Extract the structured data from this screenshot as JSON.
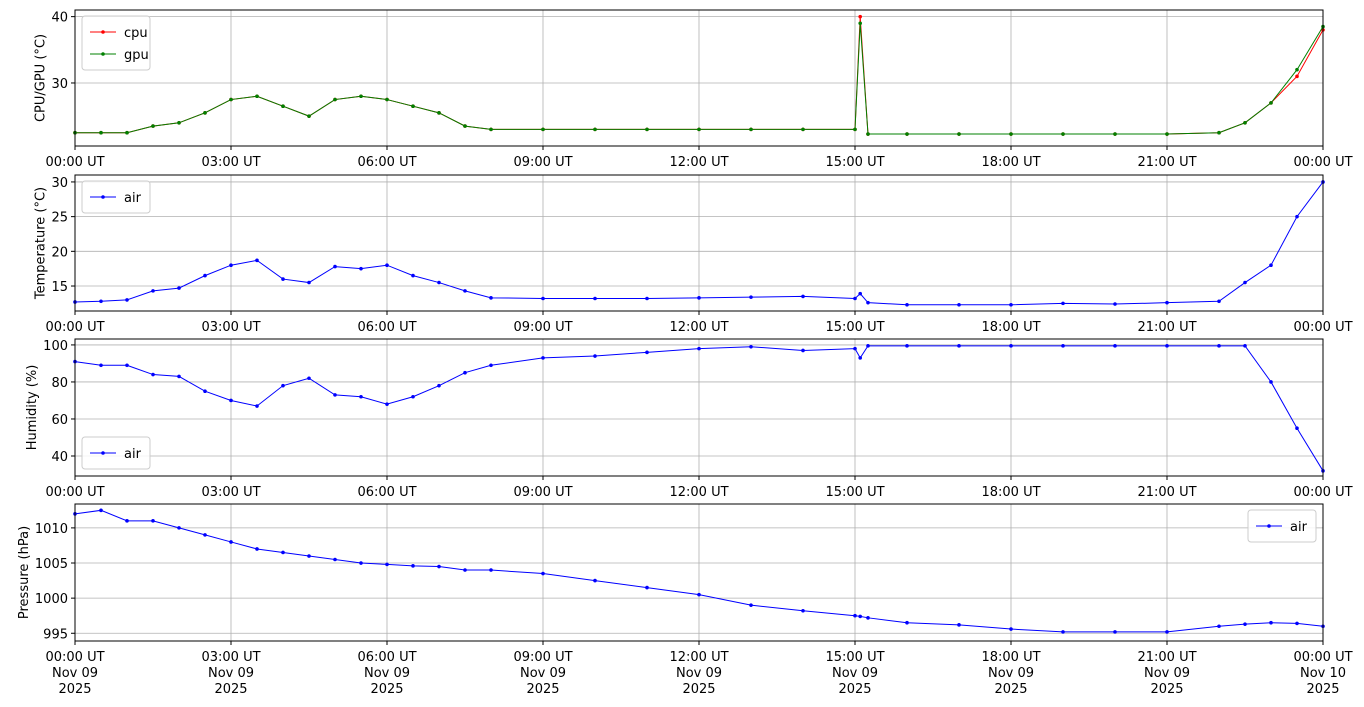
{
  "chart_data": [
    {
      "type": "line",
      "ylabel": "CPU/GPU (°C)",
      "grid": true,
      "legend": "upper left",
      "x": [
        "2025-11-09 00:00",
        "2025-11-09 00:30",
        "2025-11-09 01:00",
        "2025-11-09 01:30",
        "2025-11-09 02:00",
        "2025-11-09 02:30",
        "2025-11-09 03:00",
        "2025-11-09 03:30",
        "2025-11-09 04:00",
        "2025-11-09 04:30",
        "2025-11-09 05:00",
        "2025-11-09 05:30",
        "2025-11-09 06:00",
        "2025-11-09 06:30",
        "2025-11-09 07:00",
        "2025-11-09 07:30",
        "2025-11-09 08:00",
        "2025-11-09 09:00",
        "2025-11-09 10:00",
        "2025-11-09 11:00",
        "2025-11-09 12:00",
        "2025-11-09 13:00",
        "2025-11-09 14:00",
        "2025-11-09 15:00",
        "2025-11-09 15:06",
        "2025-11-09 15:15",
        "2025-11-09 16:00",
        "2025-11-09 17:00",
        "2025-11-09 18:00",
        "2025-11-09 19:00",
        "2025-11-09 20:00",
        "2025-11-09 21:00",
        "2025-11-09 22:00",
        "2025-11-09 22:30",
        "2025-11-09 23:00",
        "2025-11-09 23:30",
        "2025-11-10 00:00"
      ],
      "series": [
        {
          "name": "cpu",
          "color": "#ff0000",
          "values": [
            22.5,
            22.5,
            22.5,
            23.5,
            24,
            25.5,
            27.5,
            28,
            26.5,
            25,
            27.5,
            28,
            27.5,
            26.5,
            25.5,
            23.5,
            23,
            23,
            23,
            23,
            23,
            23,
            23,
            23,
            40,
            22.3,
            22.3,
            22.3,
            22.3,
            22.3,
            22.3,
            22.3,
            22.5,
            24,
            27,
            31,
            38
          ]
        },
        {
          "name": "gpu",
          "color": "#008000",
          "values": [
            22.5,
            22.5,
            22.5,
            23.5,
            24,
            25.5,
            27.5,
            28,
            26.5,
            25,
            27.5,
            28,
            27.5,
            26.5,
            25.5,
            23.5,
            23,
            23,
            23,
            23,
            23,
            23,
            23,
            23,
            39,
            22.3,
            22.3,
            22.3,
            22.3,
            22.3,
            22.3,
            22.3,
            22.5,
            24,
            27,
            32,
            38.5
          ]
        }
      ],
      "xlim": [
        "2025-11-09 00:00",
        "2025-11-10 00:00"
      ],
      "ylim": [
        20.5,
        41
      ],
      "xticks": [
        {
          "value": "2025-11-09 00:00",
          "label": "00:00 UT"
        },
        {
          "value": "2025-11-09 03:00",
          "label": "03:00 UT"
        },
        {
          "value": "2025-11-09 06:00",
          "label": "06:00 UT"
        },
        {
          "value": "2025-11-09 09:00",
          "label": "09:00 UT"
        },
        {
          "value": "2025-11-09 12:00",
          "label": "12:00 UT"
        },
        {
          "value": "2025-11-09 15:00",
          "label": "15:00 UT"
        },
        {
          "value": "2025-11-09 18:00",
          "label": "18:00 UT"
        },
        {
          "value": "2025-11-09 21:00",
          "label": "21:00 UT"
        },
        {
          "value": "2025-11-10 00:00",
          "label": "00:00 UT"
        }
      ],
      "yticks": [
        30,
        40
      ]
    },
    {
      "type": "line",
      "ylabel": "Temperature (°C)",
      "grid": true,
      "legend": "upper left",
      "x": [
        "2025-11-09 00:00",
        "2025-11-09 00:30",
        "2025-11-09 01:00",
        "2025-11-09 01:30",
        "2025-11-09 02:00",
        "2025-11-09 02:30",
        "2025-11-09 03:00",
        "2025-11-09 03:30",
        "2025-11-09 04:00",
        "2025-11-09 04:30",
        "2025-11-09 05:00",
        "2025-11-09 05:30",
        "2025-11-09 06:00",
        "2025-11-09 06:30",
        "2025-11-09 07:00",
        "2025-11-09 07:30",
        "2025-11-09 08:00",
        "2025-11-09 09:00",
        "2025-11-09 10:00",
        "2025-11-09 11:00",
        "2025-11-09 12:00",
        "2025-11-09 13:00",
        "2025-11-09 14:00",
        "2025-11-09 15:00",
        "2025-11-09 15:06",
        "2025-11-09 15:15",
        "2025-11-09 16:00",
        "2025-11-09 17:00",
        "2025-11-09 18:00",
        "2025-11-09 19:00",
        "2025-11-09 20:00",
        "2025-11-09 21:00",
        "2025-11-09 22:00",
        "2025-11-09 22:30",
        "2025-11-09 23:00",
        "2025-11-09 23:30",
        "2025-11-10 00:00"
      ],
      "series": [
        {
          "name": "air",
          "color": "#0000ff",
          "values": [
            12.7,
            12.8,
            13,
            14.3,
            14.7,
            16.5,
            18,
            18.7,
            16,
            15.5,
            17.8,
            17.5,
            18,
            16.5,
            15.5,
            14.3,
            13.3,
            13.2,
            13.2,
            13.2,
            13.3,
            13.4,
            13.5,
            13.2,
            13.9,
            12.6,
            12.3,
            12.3,
            12.3,
            12.5,
            12.4,
            12.6,
            12.8,
            15.5,
            18,
            25,
            30
          ]
        }
      ],
      "xlim": [
        "2025-11-09 00:00",
        "2025-11-10 00:00"
      ],
      "ylim": [
        11.4,
        31
      ],
      "xticks": [
        {
          "value": "2025-11-09 00:00",
          "label": "00:00 UT"
        },
        {
          "value": "2025-11-09 03:00",
          "label": "03:00 UT"
        },
        {
          "value": "2025-11-09 06:00",
          "label": "06:00 UT"
        },
        {
          "value": "2025-11-09 09:00",
          "label": "09:00 UT"
        },
        {
          "value": "2025-11-09 12:00",
          "label": "12:00 UT"
        },
        {
          "value": "2025-11-09 15:00",
          "label": "15:00 UT"
        },
        {
          "value": "2025-11-09 18:00",
          "label": "18:00 UT"
        },
        {
          "value": "2025-11-09 21:00",
          "label": "21:00 UT"
        },
        {
          "value": "2025-11-10 00:00",
          "label": "00:00 UT"
        }
      ],
      "yticks": [
        15,
        20,
        25,
        30
      ]
    },
    {
      "type": "line",
      "ylabel": "Humidity (%)",
      "grid": true,
      "legend": "lower left",
      "x": [
        "2025-11-09 00:00",
        "2025-11-09 00:30",
        "2025-11-09 01:00",
        "2025-11-09 01:30",
        "2025-11-09 02:00",
        "2025-11-09 02:30",
        "2025-11-09 03:00",
        "2025-11-09 03:30",
        "2025-11-09 04:00",
        "2025-11-09 04:30",
        "2025-11-09 05:00",
        "2025-11-09 05:30",
        "2025-11-09 06:00",
        "2025-11-09 06:30",
        "2025-11-09 07:00",
        "2025-11-09 07:30",
        "2025-11-09 08:00",
        "2025-11-09 09:00",
        "2025-11-09 10:00",
        "2025-11-09 11:00",
        "2025-11-09 12:00",
        "2025-11-09 13:00",
        "2025-11-09 14:00",
        "2025-11-09 15:00",
        "2025-11-09 15:06",
        "2025-11-09 15:15",
        "2025-11-09 16:00",
        "2025-11-09 17:00",
        "2025-11-09 18:00",
        "2025-11-09 19:00",
        "2025-11-09 20:00",
        "2025-11-09 21:00",
        "2025-11-09 22:00",
        "2025-11-09 22:30",
        "2025-11-09 23:00",
        "2025-11-09 23:30",
        "2025-11-10 00:00"
      ],
      "series": [
        {
          "name": "air",
          "color": "#0000ff",
          "values": [
            91,
            89,
            89,
            84,
            83,
            75,
            70,
            67,
            78,
            82,
            73,
            72,
            68,
            72,
            78,
            85,
            89,
            93,
            94,
            96,
            98,
            99,
            97,
            98,
            93,
            99.5,
            99.5,
            99.5,
            99.5,
            99.5,
            99.5,
            99.5,
            99.5,
            99.5,
            80,
            55,
            32
          ]
        }
      ],
      "xlim": [
        "2025-11-09 00:00",
        "2025-11-10 00:00"
      ],
      "ylim": [
        29.2,
        103.2
      ],
      "xticks": [
        {
          "value": "2025-11-09 00:00",
          "label": "00:00 UT"
        },
        {
          "value": "2025-11-09 03:00",
          "label": "03:00 UT"
        },
        {
          "value": "2025-11-09 06:00",
          "label": "06:00 UT"
        },
        {
          "value": "2025-11-09 09:00",
          "label": "09:00 UT"
        },
        {
          "value": "2025-11-09 12:00",
          "label": "12:00 UT"
        },
        {
          "value": "2025-11-09 15:00",
          "label": "15:00 UT"
        },
        {
          "value": "2025-11-09 18:00",
          "label": "18:00 UT"
        },
        {
          "value": "2025-11-09 21:00",
          "label": "21:00 UT"
        },
        {
          "value": "2025-11-10 00:00",
          "label": "00:00 UT"
        }
      ],
      "yticks": [
        40,
        60,
        80,
        100
      ]
    },
    {
      "type": "line",
      "ylabel": "Pressure (hPa)",
      "grid": true,
      "legend": "upper right",
      "x": [
        "2025-11-09 00:00",
        "2025-11-09 00:30",
        "2025-11-09 01:00",
        "2025-11-09 01:30",
        "2025-11-09 02:00",
        "2025-11-09 02:30",
        "2025-11-09 03:00",
        "2025-11-09 03:30",
        "2025-11-09 04:00",
        "2025-11-09 04:30",
        "2025-11-09 05:00",
        "2025-11-09 05:30",
        "2025-11-09 06:00",
        "2025-11-09 06:30",
        "2025-11-09 07:00",
        "2025-11-09 07:30",
        "2025-11-09 08:00",
        "2025-11-09 09:00",
        "2025-11-09 10:00",
        "2025-11-09 11:00",
        "2025-11-09 12:00",
        "2025-11-09 13:00",
        "2025-11-09 14:00",
        "2025-11-09 15:00",
        "2025-11-09 15:06",
        "2025-11-09 15:15",
        "2025-11-09 16:00",
        "2025-11-09 17:00",
        "2025-11-09 18:00",
        "2025-11-09 19:00",
        "2025-11-09 20:00",
        "2025-11-09 21:00",
        "2025-11-09 22:00",
        "2025-11-09 22:30",
        "2025-11-09 23:00",
        "2025-11-09 23:30",
        "2025-11-10 00:00"
      ],
      "series": [
        {
          "name": "air",
          "color": "#0000ff",
          "values": [
            1012,
            1012.5,
            1011,
            1011,
            1010,
            1009,
            1008,
            1007,
            1006.5,
            1006,
            1005.5,
            1005,
            1004.8,
            1004.6,
            1004.5,
            1004,
            1004,
            1003.5,
            1002.5,
            1001.5,
            1000.5,
            999,
            998.2,
            997.5,
            997.4,
            997.2,
            996.5,
            996.2,
            995.6,
            995.2,
            995.2,
            995.2,
            996,
            996.3,
            996.5,
            996.4,
            996
          ]
        }
      ],
      "xlim": [
        "2025-11-09 00:00",
        "2025-11-10 00:00"
      ],
      "ylim": [
        993.9,
        1013.4
      ],
      "xticks": [
        {
          "value": "2025-11-09 00:00",
          "label": "00:00 UT\nNov 09\n2025"
        },
        {
          "value": "2025-11-09 03:00",
          "label": "03:00 UT\nNov 09\n2025"
        },
        {
          "value": "2025-11-09 06:00",
          "label": "06:00 UT\nNov 09\n2025"
        },
        {
          "value": "2025-11-09 09:00",
          "label": "09:00 UT\nNov 09\n2025"
        },
        {
          "value": "2025-11-09 12:00",
          "label": "12:00 UT\nNov 09\n2025"
        },
        {
          "value": "2025-11-09 15:00",
          "label": "15:00 UT\nNov 09\n2025"
        },
        {
          "value": "2025-11-09 18:00",
          "label": "18:00 UT\nNov 09\n2025"
        },
        {
          "value": "2025-11-09 21:00",
          "label": "21:00 UT\nNov 09\n2025"
        },
        {
          "value": "2025-11-10 00:00",
          "label": "00:00 UT\nNov 10\n2025"
        }
      ],
      "yticks": [
        995,
        1000,
        1005,
        1010
      ]
    }
  ]
}
